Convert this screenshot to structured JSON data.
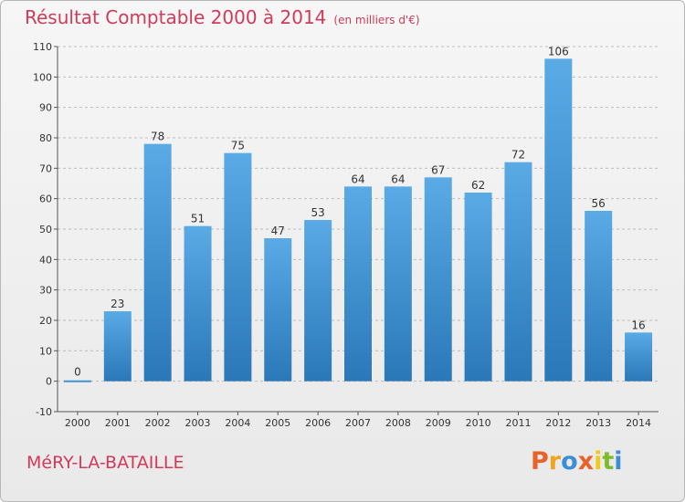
{
  "colors": {
    "title": "#d23a5a",
    "bar_light": "#5aaae6",
    "bar_dark": "#2a78b8",
    "grid": "#bdbdbd",
    "logo": [
      "#e8632a",
      "#f2a31a",
      "#3a8fd6",
      "#e8632a",
      "#f2c81a",
      "#7dbb2a",
      "#3a8fd6"
    ]
  },
  "header": {
    "title": "Résultat Comptable 2000 à 2014",
    "subtitle": "(en milliers d'€)"
  },
  "footer": {
    "commune": "MéRY-LA-BATAILLE",
    "brand": "Proxiti"
  },
  "chart_data": {
    "type": "bar",
    "categories": [
      "2000",
      "2001",
      "2002",
      "2003",
      "2004",
      "2005",
      "2006",
      "2007",
      "2008",
      "2009",
      "2010",
      "2011",
      "2012",
      "2013",
      "2014"
    ],
    "values": [
      0,
      23,
      78,
      51,
      75,
      47,
      53,
      64,
      64,
      67,
      62,
      72,
      106,
      56,
      16
    ],
    "ylim": [
      -10,
      110
    ],
    "yticks": [
      -10,
      0,
      10,
      20,
      30,
      40,
      50,
      60,
      70,
      80,
      90,
      100,
      110
    ],
    "grid": true,
    "grid_style": "dashed-horizontal"
  }
}
